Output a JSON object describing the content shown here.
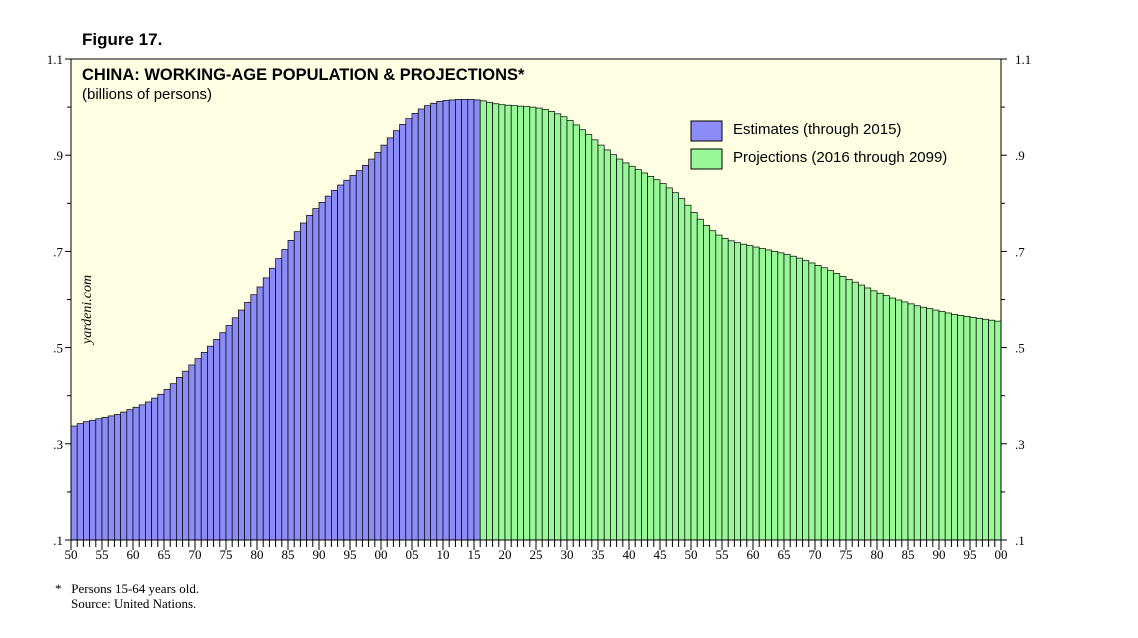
{
  "figure_label": "Figure 17.",
  "chart_data": {
    "type": "bar",
    "title": "CHINA: WORKING-AGE POPULATION & PROJECTIONS*",
    "subtitle": "(billions of persons)",
    "watermark": "yardeni.com",
    "xlabel": "",
    "ylabel": "",
    "ylim": [
      0.1,
      1.1
    ],
    "yticks": [
      ".1",
      ".3",
      ".5",
      ".7",
      ".9",
      "1.1"
    ],
    "ytick_values": [
      0.1,
      0.3,
      0.5,
      0.7,
      0.9,
      1.1
    ],
    "x_start_year": 1950,
    "x_end_year": 2100,
    "xtick_labels": [
      "50",
      "55",
      "60",
      "65",
      "70",
      "75",
      "80",
      "85",
      "90",
      "95",
      "00",
      "05",
      "10",
      "15",
      "20",
      "25",
      "30",
      "35",
      "40",
      "45",
      "50",
      "55",
      "60",
      "65",
      "70",
      "75",
      "80",
      "85",
      "90",
      "95",
      "00"
    ],
    "legend_position": "top-right",
    "grid": false,
    "background_color": "#ffffe4",
    "series": [
      {
        "name": "Estimates (through 2015)",
        "color": "#8c8cf8",
        "x_start": 1950,
        "values": [
          0.337,
          0.342,
          0.346,
          0.349,
          0.352,
          0.355,
          0.358,
          0.361,
          0.366,
          0.371,
          0.376,
          0.381,
          0.387,
          0.395,
          0.403,
          0.413,
          0.425,
          0.438,
          0.451,
          0.464,
          0.477,
          0.49,
          0.503,
          0.517,
          0.531,
          0.546,
          0.562,
          0.578,
          0.594,
          0.61,
          0.626,
          0.645,
          0.665,
          0.685,
          0.704,
          0.723,
          0.741,
          0.759,
          0.775,
          0.789,
          0.802,
          0.815,
          0.827,
          0.838,
          0.848,
          0.858,
          0.868,
          0.879,
          0.892,
          0.906,
          0.921,
          0.936,
          0.951,
          0.964,
          0.976,
          0.987,
          0.996,
          1.003,
          1.008,
          1.012,
          1.014,
          1.015,
          1.016,
          1.016,
          1.016,
          1.015
        ]
      },
      {
        "name": "Projections (2016 through 2099)",
        "color": "#98f898",
        "x_start": 2016,
        "values": [
          1.013,
          1.01,
          1.007,
          1.005,
          1.004,
          1.003,
          1.002,
          1.001,
          1.0,
          0.998,
          0.995,
          0.991,
          0.986,
          0.98,
          0.972,
          0.963,
          0.953,
          0.943,
          0.932,
          0.921,
          0.911,
          0.901,
          0.892,
          0.884,
          0.877,
          0.87,
          0.863,
          0.856,
          0.849,
          0.841,
          0.832,
          0.822,
          0.81,
          0.796,
          0.781,
          0.767,
          0.754,
          0.743,
          0.734,
          0.727,
          0.722,
          0.718,
          0.715,
          0.712,
          0.709,
          0.706,
          0.703,
          0.7,
          0.697,
          0.694,
          0.69,
          0.686,
          0.681,
          0.676,
          0.671,
          0.666,
          0.66,
          0.654,
          0.648,
          0.642,
          0.636,
          0.63,
          0.624,
          0.618,
          0.613,
          0.608,
          0.603,
          0.599,
          0.595,
          0.591,
          0.587,
          0.584,
          0.581,
          0.578,
          0.575,
          0.572,
          0.569,
          0.567,
          0.565,
          0.563,
          0.561,
          0.559,
          0.557,
          0.555
        ]
      }
    ]
  },
  "footnote": {
    "marker": "*",
    "line1": "Persons 15-64 years old.",
    "line2": "Source: United Nations."
  }
}
